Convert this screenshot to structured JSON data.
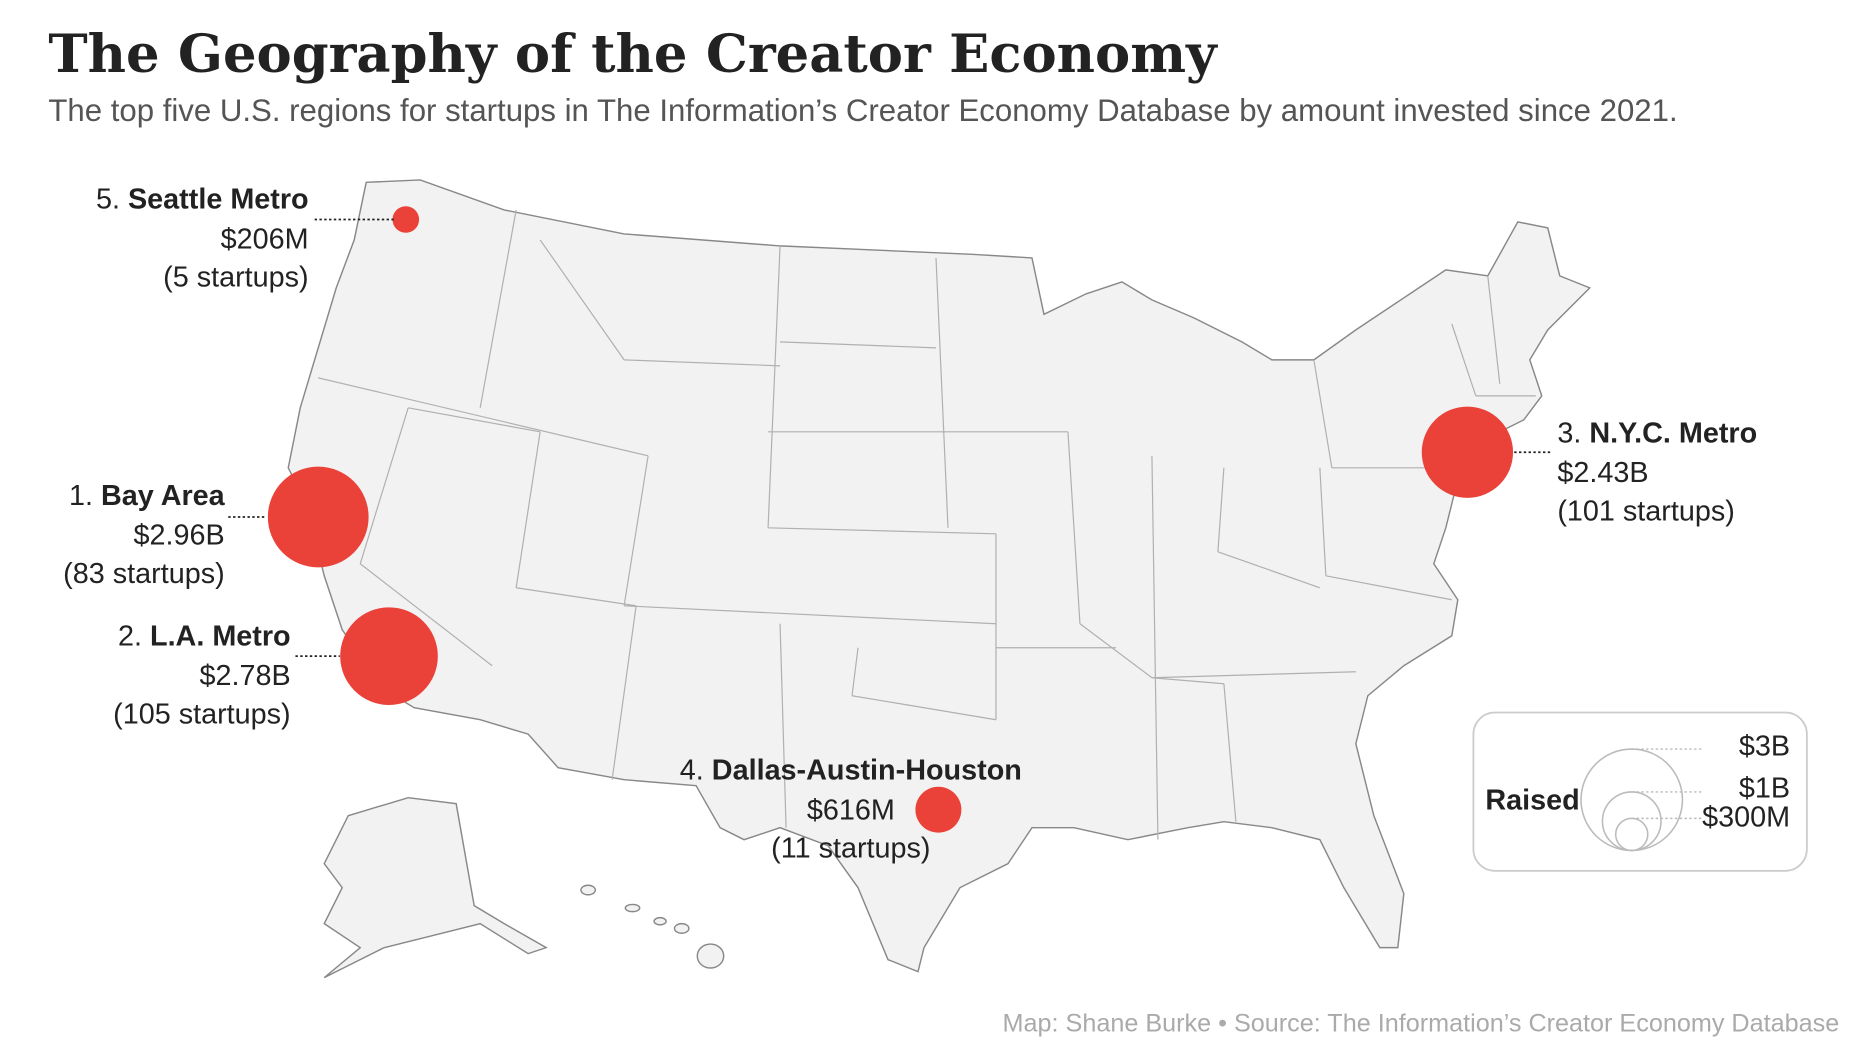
{
  "title": "The Geography of the Creator Economy",
  "subtitle": "The top five U.S. regions for startups in The Information’s Creator Economy Database by amount invested since 2021.",
  "bubble_color": "#ea4139",
  "regions": [
    {
      "rank": {
        "value": 1,
        "label": "1."
      },
      "name": "Bay Area",
      "amount": {
        "value": 2960000000,
        "label": "$2.96B"
      },
      "startups": {
        "value": 83,
        "label": "(83 startups)"
      }
    },
    {
      "rank": {
        "value": 2,
        "label": "2."
      },
      "name": "L.A. Metro",
      "amount": {
        "value": 2780000000,
        "label": "$2.78B"
      },
      "startups": {
        "value": 105,
        "label": "(105 startups)"
      }
    },
    {
      "rank": {
        "value": 3,
        "label": "3."
      },
      "name": "N.Y.C. Metro",
      "amount": {
        "value": 2430000000,
        "label": "$2.43B"
      },
      "startups": {
        "value": 101,
        "label": "(101 startups)"
      }
    },
    {
      "rank": {
        "value": 4,
        "label": "4."
      },
      "name": "Dallas-Austin-Houston",
      "amount": {
        "value": 616000000,
        "label": "$616M"
      },
      "startups": {
        "value": 11,
        "label": "(11 startups)"
      }
    },
    {
      "rank": {
        "value": 5,
        "label": "5."
      },
      "name": "Seattle Metro",
      "amount": {
        "value": 206000000,
        "label": "$206M"
      },
      "startups": {
        "value": 5,
        "label": "(5 startups)"
      }
    }
  ],
  "legend": {
    "title": "Raised",
    "sizes": [
      {
        "value": 3000000000,
        "label": "$3B"
      },
      {
        "value": 1000000000,
        "label": "$1B"
      },
      {
        "value": 300000000,
        "label": "$300M"
      }
    ]
  },
  "source": "Map: Shane Burke • Source: The Information’s Creator Economy Database"
}
